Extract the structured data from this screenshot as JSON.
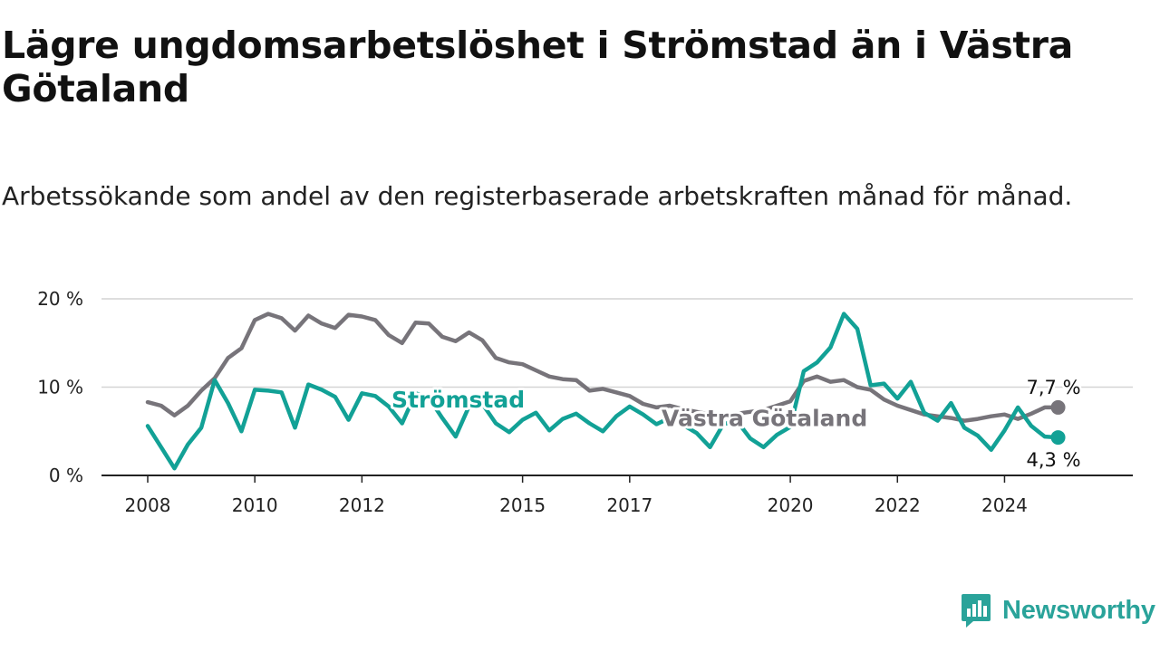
{
  "title": "Lägre ungdomsarbetslöshet i Strömstad än i Västra Götaland",
  "subtitle": "Arbetssökande som andel av den registerbaserade arbetskraften månad för månad.",
  "brand": {
    "name": "Newsworthy",
    "icon": "newsworthy-logo-icon",
    "color": "#2aa39a"
  },
  "chart_data": {
    "type": "line",
    "title": "Lägre ungdomsarbetslöshet i Strömstad än i Västra Götaland",
    "xlabel": "",
    "ylabel": "",
    "x_range": [
      2008.0,
      2025.6
    ],
    "x_ticks": [
      2008,
      2010,
      2012,
      2015,
      2017,
      2020,
      2022,
      2024
    ],
    "x_tick_labels": [
      "2008",
      "2010",
      "2012",
      "2015",
      "2017",
      "2020",
      "2022",
      "2024"
    ],
    "ylim": [
      0,
      20
    ],
    "y_ticks": [
      0,
      10,
      20
    ],
    "y_tick_labels": [
      "0 %",
      "10 %",
      "20 %"
    ],
    "grid": "horizontal",
    "legend": "inline labels",
    "series": [
      {
        "name": "Västra Götaland",
        "color": "#77747a",
        "end_label": "7,7 %",
        "points": [
          [
            2008.0,
            8.3
          ],
          [
            2008.25,
            7.9
          ],
          [
            2008.5,
            6.8
          ],
          [
            2008.75,
            7.9
          ],
          [
            2009.0,
            9.6
          ],
          [
            2009.25,
            11.0
          ],
          [
            2009.5,
            13.3
          ],
          [
            2009.75,
            14.4
          ],
          [
            2010.0,
            17.6
          ],
          [
            2010.25,
            18.3
          ],
          [
            2010.5,
            17.8
          ],
          [
            2010.75,
            16.4
          ],
          [
            2011.0,
            18.1
          ],
          [
            2011.25,
            17.2
          ],
          [
            2011.5,
            16.7
          ],
          [
            2011.75,
            18.2
          ],
          [
            2012.0,
            18.0
          ],
          [
            2012.25,
            17.6
          ],
          [
            2012.5,
            15.9
          ],
          [
            2012.75,
            15.0
          ],
          [
            2013.0,
            17.3
          ],
          [
            2013.25,
            17.2
          ],
          [
            2013.5,
            15.7
          ],
          [
            2013.75,
            15.2
          ],
          [
            2014.0,
            16.2
          ],
          [
            2014.25,
            15.3
          ],
          [
            2014.5,
            13.3
          ],
          [
            2014.75,
            12.8
          ],
          [
            2015.0,
            12.6
          ],
          [
            2015.25,
            11.9
          ],
          [
            2015.5,
            11.2
          ],
          [
            2015.75,
            10.9
          ],
          [
            2016.0,
            10.8
          ],
          [
            2016.25,
            9.6
          ],
          [
            2016.5,
            9.8
          ],
          [
            2016.75,
            9.4
          ],
          [
            2017.0,
            9.0
          ],
          [
            2017.25,
            8.1
          ],
          [
            2017.5,
            7.7
          ],
          [
            2017.75,
            7.9
          ],
          [
            2018.0,
            7.5
          ],
          [
            2018.25,
            7.2
          ],
          [
            2018.5,
            6.9
          ],
          [
            2018.75,
            6.8
          ],
          [
            2019.0,
            7.0
          ],
          [
            2019.25,
            7.2
          ],
          [
            2019.5,
            7.4
          ],
          [
            2019.75,
            7.9
          ],
          [
            2020.0,
            8.4
          ],
          [
            2020.25,
            10.7
          ],
          [
            2020.5,
            11.2
          ],
          [
            2020.75,
            10.6
          ],
          [
            2021.0,
            10.8
          ],
          [
            2021.25,
            10.0
          ],
          [
            2021.5,
            9.7
          ],
          [
            2021.75,
            8.6
          ],
          [
            2022.0,
            7.9
          ],
          [
            2022.25,
            7.4
          ],
          [
            2022.5,
            6.9
          ],
          [
            2022.75,
            6.7
          ],
          [
            2023.0,
            6.5
          ],
          [
            2023.25,
            6.2
          ],
          [
            2023.5,
            6.4
          ],
          [
            2023.75,
            6.7
          ],
          [
            2024.0,
            6.9
          ],
          [
            2024.25,
            6.4
          ],
          [
            2024.5,
            7.0
          ],
          [
            2024.75,
            7.7
          ],
          [
            2025.0,
            7.7
          ]
        ]
      },
      {
        "name": "Strömstad",
        "color": "#12a196",
        "end_label": "4,3 %",
        "points": [
          [
            2008.0,
            5.6
          ],
          [
            2008.25,
            3.2
          ],
          [
            2008.5,
            0.8
          ],
          [
            2008.75,
            3.5
          ],
          [
            2009.0,
            5.4
          ],
          [
            2009.25,
            10.8
          ],
          [
            2009.5,
            8.2
          ],
          [
            2009.75,
            5.0
          ],
          [
            2010.0,
            9.7
          ],
          [
            2010.25,
            9.6
          ],
          [
            2010.5,
            9.4
          ],
          [
            2010.75,
            5.4
          ],
          [
            2011.0,
            10.3
          ],
          [
            2011.25,
            9.7
          ],
          [
            2011.5,
            8.9
          ],
          [
            2011.75,
            6.3
          ],
          [
            2012.0,
            9.3
          ],
          [
            2012.25,
            9.0
          ],
          [
            2012.5,
            7.8
          ],
          [
            2012.75,
            5.9
          ],
          [
            2013.0,
            9.3
          ],
          [
            2013.25,
            8.8
          ],
          [
            2013.5,
            6.5
          ],
          [
            2013.75,
            4.4
          ],
          [
            2014.0,
            7.8
          ],
          [
            2014.25,
            8.1
          ],
          [
            2014.5,
            5.9
          ],
          [
            2014.75,
            4.9
          ],
          [
            2015.0,
            6.3
          ],
          [
            2015.25,
            7.1
          ],
          [
            2015.5,
            5.1
          ],
          [
            2015.75,
            6.4
          ],
          [
            2016.0,
            7.0
          ],
          [
            2016.25,
            5.9
          ],
          [
            2016.5,
            5.0
          ],
          [
            2016.75,
            6.7
          ],
          [
            2017.0,
            7.8
          ],
          [
            2017.25,
            6.9
          ],
          [
            2017.5,
            5.8
          ],
          [
            2017.75,
            6.5
          ],
          [
            2018.0,
            5.7
          ],
          [
            2018.25,
            4.8
          ],
          [
            2018.5,
            3.2
          ],
          [
            2018.75,
            5.8
          ],
          [
            2019.0,
            6.2
          ],
          [
            2019.25,
            4.2
          ],
          [
            2019.5,
            3.2
          ],
          [
            2019.75,
            4.6
          ],
          [
            2020.0,
            5.5
          ],
          [
            2020.25,
            11.8
          ],
          [
            2020.5,
            12.8
          ],
          [
            2020.75,
            14.5
          ],
          [
            2021.0,
            18.3
          ],
          [
            2021.25,
            16.6
          ],
          [
            2021.5,
            10.2
          ],
          [
            2021.75,
            10.4
          ],
          [
            2022.0,
            8.7
          ],
          [
            2022.25,
            10.6
          ],
          [
            2022.5,
            7.1
          ],
          [
            2022.75,
            6.2
          ],
          [
            2023.0,
            8.2
          ],
          [
            2023.25,
            5.4
          ],
          [
            2023.5,
            4.5
          ],
          [
            2023.75,
            2.9
          ],
          [
            2024.0,
            5.1
          ],
          [
            2024.25,
            7.7
          ],
          [
            2024.5,
            5.6
          ],
          [
            2024.75,
            4.4
          ],
          [
            2025.0,
            4.3
          ]
        ]
      }
    ]
  }
}
